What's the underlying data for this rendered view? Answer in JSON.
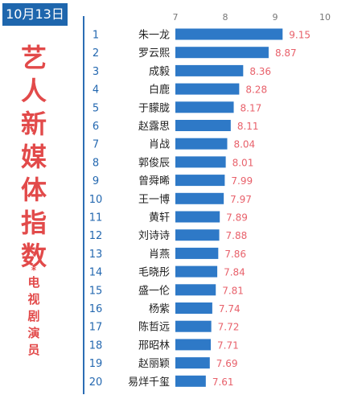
{
  "header": {
    "date": "10月13日"
  },
  "side_title": {
    "chars": [
      "艺",
      "人",
      "新",
      "媒",
      "体",
      "指",
      "数"
    ],
    "star": "*",
    "sub_chars": [
      "电",
      "视",
      "剧",
      "演",
      "员"
    ]
  },
  "colors": {
    "bar": "#2e79c7",
    "rank": "#2468b0",
    "value": "#e8616b",
    "title": "#e24a4a",
    "badge": "#1e66ad"
  },
  "chart_data": {
    "type": "bar",
    "orientation": "horizontal",
    "xlim": [
      7,
      10
    ],
    "ticks": [
      7,
      8,
      9,
      10
    ],
    "ranks": [
      "1",
      "2",
      "3",
      "4",
      "5",
      "6",
      "7",
      "8",
      "9",
      "10",
      "11",
      "12",
      "13",
      "14",
      "15",
      "16",
      "17",
      "18",
      "19",
      "20"
    ],
    "categories": [
      "朱一龙",
      "罗云熙",
      "成毅",
      "白鹿",
      "于朦胧",
      "赵露思",
      "肖战",
      "郭俊辰",
      "曾舜晞",
      "王一博",
      "黄轩",
      "刘诗诗",
      "肖燕",
      "毛晓彤",
      "盛一伦",
      "杨紫",
      "陈哲远",
      "邢昭林",
      "赵丽颖",
      "易烊千玺"
    ],
    "value_labels": [
      "9.15",
      "8.87",
      "8.36",
      "8.28",
      "8.17",
      "8.11",
      "8.04",
      "8.01",
      "7.99",
      "7.97",
      "7.89",
      "7.88",
      "7.86",
      "7.84",
      "7.81",
      "7.74",
      "7.72",
      "7.71",
      "7.69",
      "7.61"
    ],
    "values": [
      9.15,
      8.87,
      8.36,
      8.28,
      8.17,
      8.11,
      8.04,
      8.01,
      7.99,
      7.97,
      7.89,
      7.88,
      7.86,
      7.84,
      7.81,
      7.74,
      7.72,
      7.71,
      7.69,
      7.61
    ]
  }
}
